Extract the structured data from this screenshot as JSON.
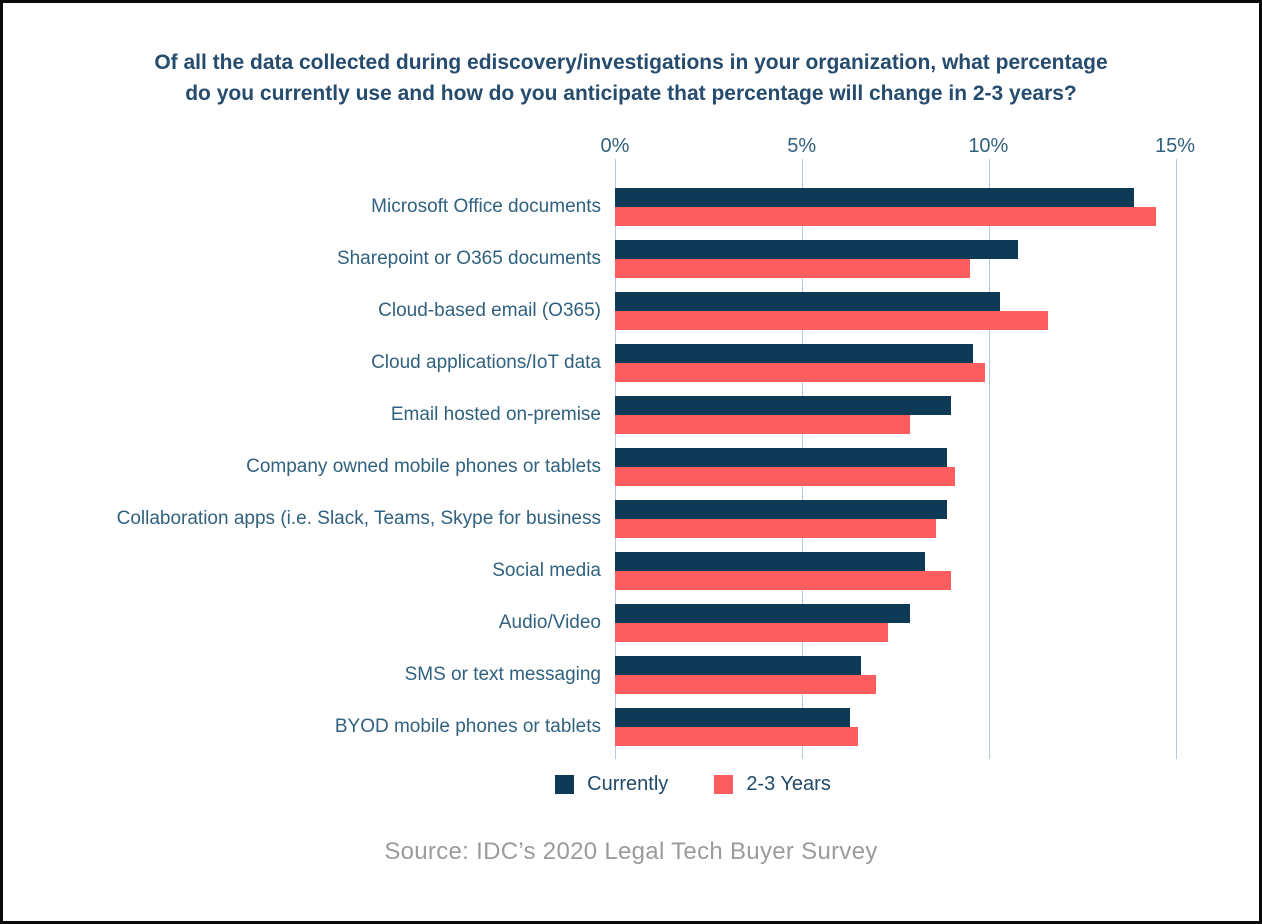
{
  "title": {
    "line1": "Of all the data collected during ediscovery/investigations in your organization, what percentage",
    "line2": "do you currently use and how do you anticipate that percentage will change in 2-3 years?"
  },
  "chart_data": {
    "type": "bar",
    "orientation": "horizontal",
    "title": "Of all the data collected during ediscovery/investigations in your organization, what percentage do you currently use and how do you anticipate that percentage will change in 2-3 years?",
    "categories": [
      "Microsoft Office documents",
      "Sharepoint or O365 documents",
      "Cloud-based email (O365)",
      "Cloud applications/IoT data",
      "Email hosted on-premise",
      "Company owned mobile phones or tablets",
      "Collaboration apps (i.e. Slack, Teams, Skype for business",
      "Social media",
      "Audio/Video",
      "SMS or text messaging",
      "BYOD mobile phones or tablets"
    ],
    "series": [
      {
        "name": "Currently",
        "color": "#0e3a55",
        "values": [
          13.9,
          10.8,
          10.3,
          9.6,
          9.0,
          8.9,
          8.9,
          8.3,
          7.9,
          6.6,
          6.3
        ]
      },
      {
        "name": "2-3 Years",
        "color": "#fc5d5e",
        "values": [
          14.5,
          9.5,
          11.6,
          9.9,
          7.9,
          9.1,
          8.6,
          9.0,
          7.3,
          7.0,
          6.5
        ]
      }
    ],
    "xlim": [
      0,
      15
    ],
    "x_ticks": [
      "0%",
      "5%",
      "10%",
      "15%"
    ],
    "grid": "vertical",
    "legend_position": "bottom"
  },
  "colors": {
    "currently_bar": "#0e3a55",
    "future_bar": "#fc5d5e",
    "gridline": "#b7c9d4",
    "title_text": "#254b6e",
    "axis_text": "#30617f",
    "source_text": "#9b9b9b"
  },
  "source": "Source: IDC’s 2020 Legal Tech Buyer Survey"
}
